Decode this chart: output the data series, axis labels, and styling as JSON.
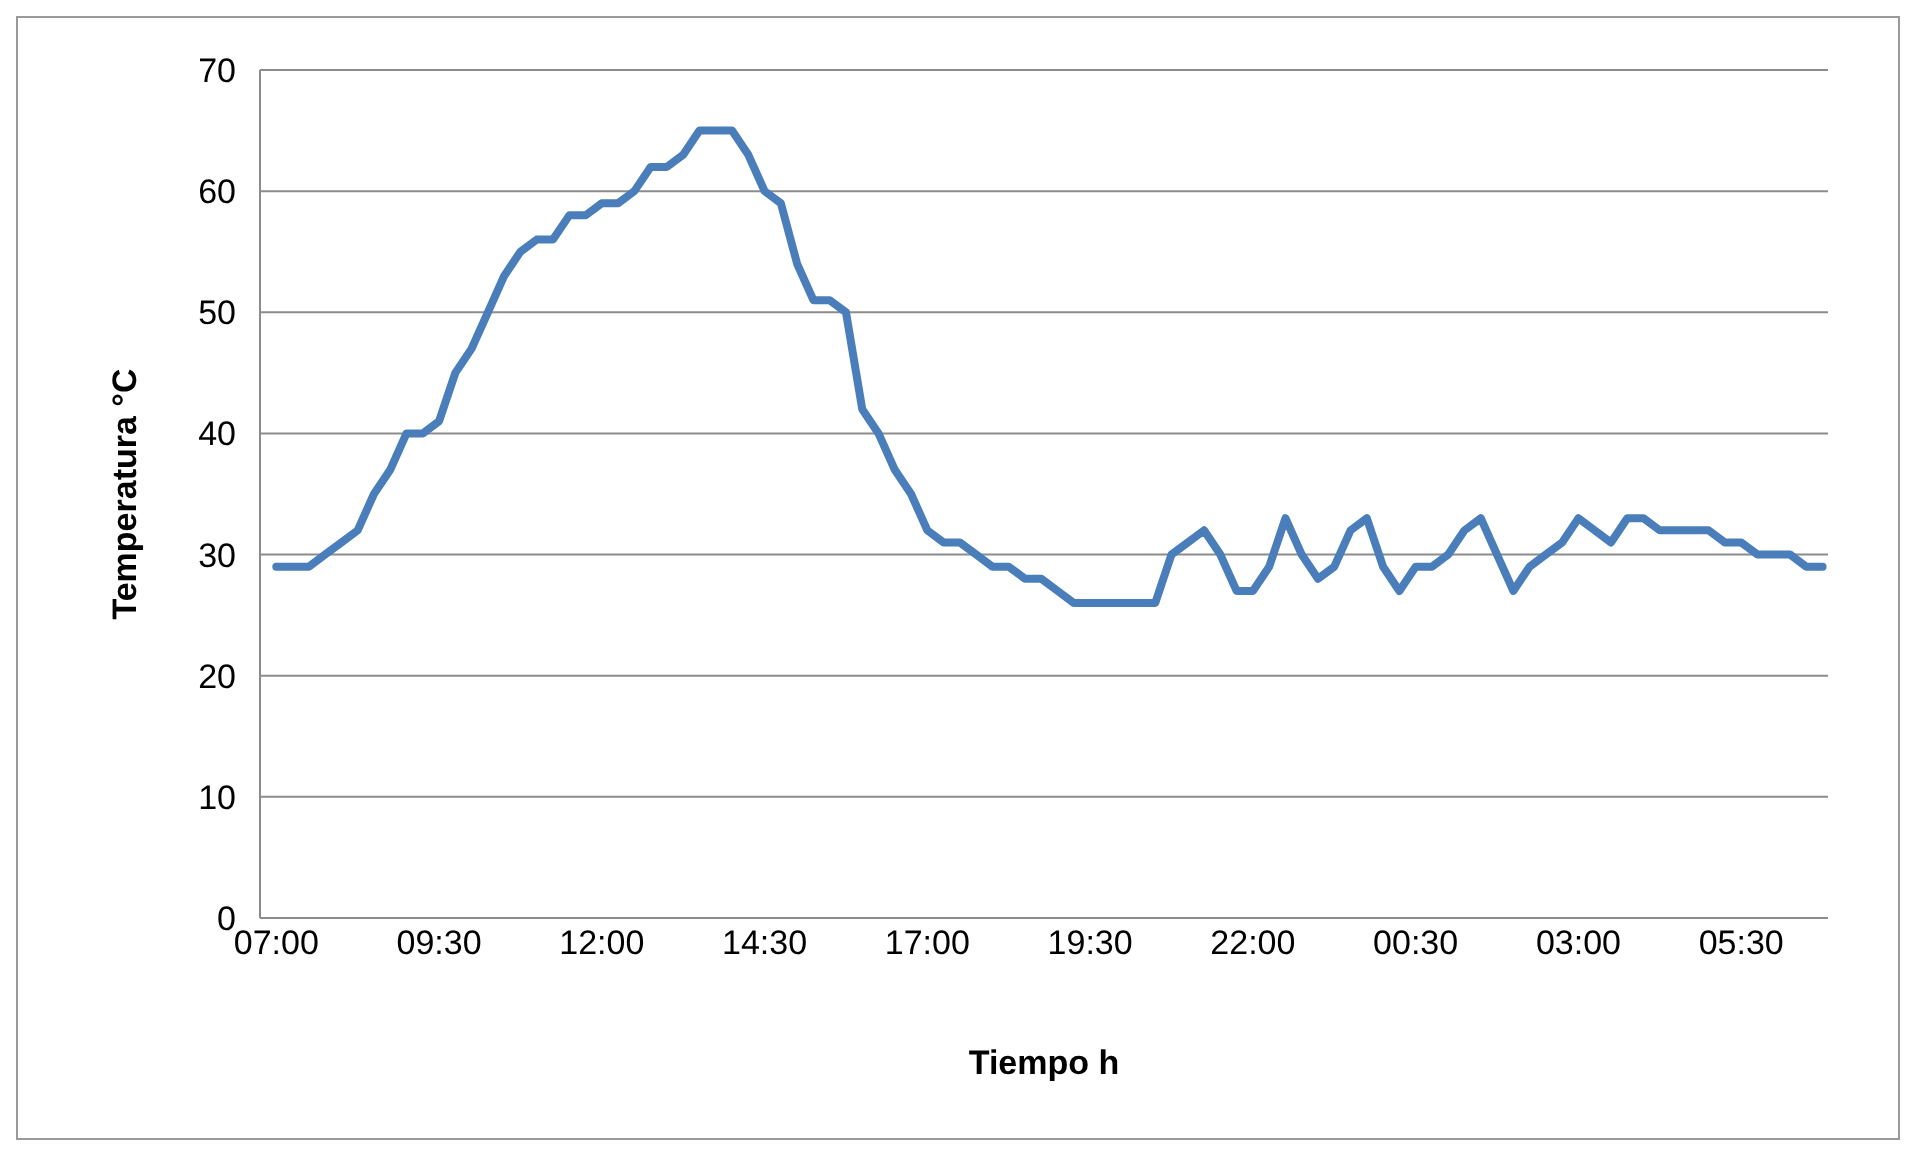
{
  "chart_data": {
    "type": "line",
    "xlabel": "Tiempo h",
    "ylabel": "Temperatura °C",
    "x": [
      "--01-01T07:00",
      "--01-01T07:15",
      "--01-01T07:30",
      "--01-01T07:45",
      "--01-01T08:00",
      "--01-01T08:15",
      "--01-01T08:30",
      "--01-01T08:45",
      "--01-01T09:00",
      "--01-01T09:15",
      "--01-01T09:30",
      "--01-01T09:45",
      "--01-01T10:00",
      "--01-01T10:15",
      "--01-01T10:30",
      "--01-01T10:45",
      "--01-01T11:00",
      "--01-01T11:15",
      "--01-01T11:30",
      "--01-01T11:45",
      "--01-01T12:00",
      "--01-01T12:15",
      "--01-01T12:30",
      "--01-01T12:45",
      "--01-01T13:00",
      "--01-01T13:15",
      "--01-01T13:30",
      "--01-01T13:45",
      "--01-01T14:00",
      "--01-01T14:15",
      "--01-01T14:30",
      "--01-01T14:45",
      "--01-01T15:00",
      "--01-01T15:15",
      "--01-01T15:30",
      "--01-01T15:45",
      "--01-01T16:00",
      "--01-01T16:15",
      "--01-01T16:30",
      "--01-01T16:45",
      "--01-01T17:00",
      "--01-01T17:15",
      "--01-01T17:30",
      "--01-01T17:45",
      "--01-01T18:00",
      "--01-01T18:15",
      "--01-01T18:30",
      "--01-01T18:45",
      "--01-01T19:00",
      "--01-01T19:15",
      "--01-01T19:30",
      "--01-01T19:45",
      "--01-01T20:00",
      "--01-01T20:15",
      "--01-01T20:30",
      "--01-01T20:45",
      "--01-01T21:00",
      "--01-01T21:15",
      "--01-01T21:30",
      "--01-01T21:45",
      "--01-01T22:00",
      "--01-01T22:15",
      "--01-01T22:30",
      "--01-01T22:45",
      "--01-01T23:00",
      "--01-01T23:15",
      "--01-01T23:30",
      "--01-01T23:45",
      "--01-02T00:00",
      "--01-02T00:15",
      "--01-02T00:30",
      "--01-02T00:45",
      "--01-02T01:00",
      "--01-02T01:15",
      "--01-02T01:30",
      "--01-02T01:45",
      "--01-02T02:00",
      "--01-02T02:15",
      "--01-02T02:30",
      "--01-02T02:45",
      "--01-02T03:00",
      "--01-02T03:15",
      "--01-02T03:30",
      "--01-02T03:45",
      "--01-02T04:00",
      "--01-02T04:15",
      "--01-02T04:30",
      "--01-02T04:45",
      "--01-02T05:00",
      "--01-02T05:15",
      "--01-02T05:30",
      "--01-02T05:45",
      "--01-02T06:00",
      "--01-02T06:15",
      "--01-02T06:30",
      "--01-02T06:45"
    ],
    "series": [
      {
        "color": "#4a7ebb",
        "values": [
          29,
          29,
          29,
          30,
          31,
          32,
          35,
          37,
          40,
          40,
          41,
          45,
          47,
          50,
          53,
          55,
          56,
          56,
          58,
          58,
          59,
          59,
          60,
          62,
          62,
          63,
          65,
          65,
          65,
          63,
          60,
          59,
          54,
          51,
          51,
          50,
          42,
          40,
          37,
          35,
          32,
          31,
          31,
          30,
          29,
          29,
          28,
          28,
          27,
          26,
          26,
          26,
          26,
          26,
          26,
          30,
          31,
          32,
          30,
          27,
          27,
          29,
          33,
          30,
          28,
          29,
          32,
          33,
          29,
          27,
          29,
          29,
          30,
          32,
          33,
          30,
          27,
          29,
          30,
          31,
          33,
          32,
          31,
          33,
          33,
          32,
          32,
          32,
          32,
          31,
          31,
          30,
          30,
          30,
          29,
          29
        ]
      }
    ],
    "xlim": [
      "--01-01T06:45",
      "--01-02T06:50"
    ],
    "xticks": [
      {
        "value": "--01-01T07:00",
        "label": "07:00"
      },
      {
        "value": "--01-01T09:30",
        "label": "09:30"
      },
      {
        "value": "--01-01T12:00",
        "label": "12:00"
      },
      {
        "value": "--01-01T14:30",
        "label": "14:30"
      },
      {
        "value": "--01-01T17:00",
        "label": "17:00"
      },
      {
        "value": "--01-01T19:30",
        "label": "19:30"
      },
      {
        "value": "--01-01T22:00",
        "label": "22:00"
      },
      {
        "value": "--01-02T00:30",
        "label": "00:30"
      },
      {
        "value": "--01-02T03:00",
        "label": "03:00"
      },
      {
        "value": "--01-02T05:30",
        "label": "05:30"
      }
    ],
    "ylim": [
      0,
      70
    ],
    "yticks": [
      0,
      10,
      20,
      30,
      40,
      50,
      60,
      70
    ],
    "grid": "y",
    "marker": "none",
    "line_style": "solid"
  }
}
